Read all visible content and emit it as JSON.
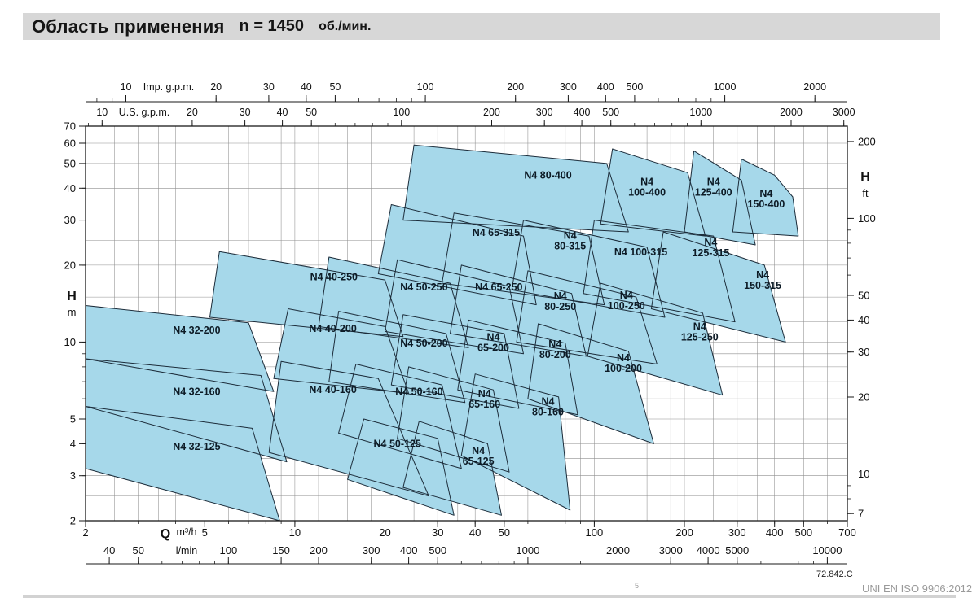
{
  "title": {
    "main": "Область применения",
    "speed": "n = 1450",
    "unit": "об./мин."
  },
  "footer": {
    "code": "72.842.C",
    "standard": "UNI EN ISO 9906:2012",
    "footnote_marker": "5"
  },
  "chart_data": {
    "type": "area",
    "title": "Область применения n = 1450 об./мин.",
    "axes": {
      "q_m3h": {
        "name_label": "Q",
        "unit": "m³/h",
        "range": [
          2,
          700
        ],
        "ticks": [
          2,
          5,
          10,
          20,
          30,
          40,
          50,
          100,
          200,
          300,
          400,
          500,
          700
        ]
      },
      "q_lmin": {
        "unit": "l/min",
        "per_m3h": 16.667,
        "ticks": [
          40,
          50,
          100,
          150,
          200,
          300,
          400,
          500,
          1000,
          2000,
          3000,
          4000,
          5000,
          10000
        ]
      },
      "q_usgpm": {
        "unit": "U.S. g.p.m.",
        "per_m3h": 4.403,
        "ticks": [
          10,
          20,
          30,
          40,
          50,
          100,
          200,
          300,
          400,
          500,
          1000,
          2000,
          3000
        ]
      },
      "q_impgpm": {
        "unit": "Imp. g.p.m.",
        "per_m3h": 3.666,
        "ticks": [
          10,
          20,
          30,
          40,
          50,
          100,
          200,
          300,
          400,
          500,
          1000,
          2000
        ]
      },
      "h_m": {
        "name_label": "H",
        "unit": "m",
        "range": [
          2,
          70
        ],
        "ticks": [
          2,
          3,
          4,
          5,
          10,
          20,
          30,
          40,
          50,
          60,
          70
        ]
      },
      "h_ft": {
        "name_label": "H",
        "unit": "ft",
        "per_m": 3.281,
        "ticks": [
          7,
          10,
          20,
          30,
          40,
          50,
          100,
          200
        ]
      }
    },
    "colors": {
      "fill": "#a6d8ea",
      "stroke": "#1c2c3a",
      "grid": "#8f8f8f",
      "axis": "#111111"
    },
    "regions": [
      {
        "name": "N4 32-125",
        "label_lines": [
          "N4 32-125"
        ],
        "label_at": [
          4.7,
          3.9
        ],
        "poly": [
          [
            2,
            5.6
          ],
          [
            7.2,
            4.6
          ],
          [
            8.9,
            2.0
          ],
          [
            2,
            3.2
          ]
        ]
      },
      {
        "name": "N4 32-160",
        "label_lines": [
          "N4 32-160"
        ],
        "label_at": [
          4.7,
          6.4
        ],
        "poly": [
          [
            2,
            8.6
          ],
          [
            7.7,
            7.4
          ],
          [
            9.4,
            3.4
          ],
          [
            2,
            5.6
          ]
        ]
      },
      {
        "name": "N4 32-200",
        "label_lines": [
          "N4 32-200"
        ],
        "label_at": [
          4.7,
          11.1
        ],
        "poly": [
          [
            2,
            13.9
          ],
          [
            7.0,
            11.9
          ],
          [
            8.5,
            6.4
          ],
          [
            2,
            8.6
          ]
        ]
      },
      {
        "name": "N4 40-160",
        "label_lines": [
          "N4 40-160"
        ],
        "label_at": [
          13.4,
          6.5
        ],
        "poly": [
          [
            9.0,
            8.4
          ],
          [
            19,
            7.2
          ],
          [
            28,
            2.5
          ],
          [
            8.2,
            3.7
          ]
        ]
      },
      {
        "name": "N4 40-200",
        "label_lines": [
          "N4 40-200"
        ],
        "label_at": [
          13.4,
          11.3
        ],
        "poly": [
          [
            9.5,
            13.5
          ],
          [
            20,
            11.5
          ],
          [
            24,
            6.3
          ],
          [
            8.5,
            7.2
          ]
        ]
      },
      {
        "name": "N4 40-250",
        "label_lines": [
          "N4 40-250"
        ],
        "label_at": [
          13.5,
          18.0
        ],
        "poly": [
          [
            5.6,
            22.6
          ],
          [
            20,
            17.5
          ],
          [
            23,
            10.5
          ],
          [
            5.2,
            12.5
          ]
        ]
      },
      {
        "name": "N4 50-125",
        "label_lines": [
          "N4 50-125"
        ],
        "label_at": [
          22,
          4.0
        ],
        "poly": [
          [
            17,
            5.0
          ],
          [
            30,
            4.2
          ],
          [
            34,
            2.1
          ],
          [
            15,
            2.9
          ]
        ]
      },
      {
        "name": "N4 50-160",
        "label_lines": [
          "N4 50-160"
        ],
        "label_at": [
          26,
          6.4
        ],
        "poly": [
          [
            16,
            8.2
          ],
          [
            31,
            6.8
          ],
          [
            36,
            3.2
          ],
          [
            14,
            4.4
          ]
        ]
      },
      {
        "name": "N4 50-200",
        "label_lines": [
          "N4 50-200"
        ],
        "label_at": [
          27,
          9.9
        ],
        "poly": [
          [
            14,
            13.2
          ],
          [
            32,
            10.8
          ],
          [
            37,
            5.8
          ],
          [
            13,
            7.0
          ]
        ]
      },
      {
        "name": "N4 50-250",
        "label_lines": [
          "N4 50-250"
        ],
        "label_at": [
          27,
          16.4
        ],
        "poly": [
          [
            13,
            21.5
          ],
          [
            33,
            17.0
          ],
          [
            38,
            9.5
          ],
          [
            12,
            11.5
          ]
        ]
      },
      {
        "name": "N4 65-125",
        "label_lines": [
          "N4",
          "65-125"
        ],
        "label_at": [
          41,
          3.6
        ],
        "poly": [
          [
            26,
            4.9
          ],
          [
            44,
            4.0
          ],
          [
            49,
            2.1
          ],
          [
            23,
            2.7
          ]
        ]
      },
      {
        "name": "N4 65-160",
        "label_lines": [
          "N4",
          "65-160"
        ],
        "label_at": [
          43,
          6.0
        ],
        "poly": [
          [
            24,
            8.0
          ],
          [
            46,
            6.5
          ],
          [
            52,
            3.1
          ],
          [
            22,
            4.2
          ]
        ]
      },
      {
        "name": "N4 65-200",
        "label_lines": [
          "N4",
          "65-200"
        ],
        "label_at": [
          46,
          10.0
        ],
        "poly": [
          [
            23,
            12.8
          ],
          [
            50,
            10.8
          ],
          [
            56,
            5.5
          ],
          [
            21,
            6.8
          ]
        ]
      },
      {
        "name": "N4 65-250",
        "label_lines": [
          "N4 65-250"
        ],
        "label_at": [
          48,
          16.4
        ],
        "poly": [
          [
            22,
            21.0
          ],
          [
            52,
            16.5
          ],
          [
            58,
            9.0
          ],
          [
            20,
            11.0
          ]
        ]
      },
      {
        "name": "N4 65-315",
        "label_lines": [
          "N4 65-315"
        ],
        "label_at": [
          47,
          26.8
        ],
        "poly": [
          [
            21,
            34.5
          ],
          [
            58,
            26
          ],
          [
            64,
            14
          ],
          [
            19,
            18.5
          ]
        ]
      },
      {
        "name": "N4 80-160",
        "label_lines": [
          "N4",
          "80-160"
        ],
        "label_at": [
          70,
          5.6
        ],
        "poly": [
          [
            40,
            7.5
          ],
          [
            76,
            6.1
          ],
          [
            83,
            2.2
          ],
          [
            36,
            3.6
          ]
        ]
      },
      {
        "name": "N4 80-200",
        "label_lines": [
          "N4",
          "80-200"
        ],
        "label_at": [
          74,
          9.4
        ],
        "poly": [
          [
            38,
            12.2
          ],
          [
            80,
            9.9
          ],
          [
            88,
            5.2
          ],
          [
            35,
            6.5
          ]
        ]
      },
      {
        "name": "N4 80-250",
        "label_lines": [
          "N4",
          "80-250"
        ],
        "label_at": [
          77,
          14.5
        ],
        "poly": [
          [
            36,
            20
          ],
          [
            84,
            15.5
          ],
          [
            94,
            8.8
          ],
          [
            33,
            10.8
          ]
        ]
      },
      {
        "name": "N4 80-315",
        "label_lines": [
          "N4",
          "80-315"
        ],
        "label_at": [
          83,
          25
        ],
        "poly": [
          [
            34,
            32
          ],
          [
            96,
            26
          ],
          [
            108,
            14
          ],
          [
            31,
            17
          ]
        ]
      },
      {
        "name": "N4 80-400",
        "label_lines": [
          "N4 80-400"
        ],
        "label_at": [
          70,
          45
        ],
        "poly": [
          [
            25,
            59
          ],
          [
            110,
            50
          ],
          [
            130,
            27
          ],
          [
            23,
            30
          ]
        ]
      },
      {
        "name": "N4 100-200",
        "label_lines": [
          "N4",
          "100-200"
        ],
        "label_at": [
          125,
          8.3
        ],
        "poly": [
          [
            65,
            11.8
          ],
          [
            130,
            9.2
          ],
          [
            158,
            4.0
          ],
          [
            60,
            6.0
          ]
        ]
      },
      {
        "name": "N4 100-250",
        "label_lines": [
          "N4",
          "100-250"
        ],
        "label_at": [
          128,
          14.6
        ],
        "poly": [
          [
            60,
            19
          ],
          [
            138,
            15
          ],
          [
            162,
            8.2
          ],
          [
            55,
            10
          ]
        ]
      },
      {
        "name": "N4 100-315",
        "label_lines": [
          "N4 100-315"
        ],
        "label_at": [
          143,
          22.5
        ],
        "poly": [
          [
            58,
            30
          ],
          [
            150,
            23.5
          ],
          [
            172,
            12.5
          ],
          [
            53,
            16
          ]
        ]
      },
      {
        "name": "N4 100-400",
        "label_lines": [
          "N4",
          "100-400"
        ],
        "label_at": [
          150,
          40.5
        ],
        "poly": [
          [
            115,
            57
          ],
          [
            205,
            46
          ],
          [
            235,
            26
          ],
          [
            105,
            29
          ]
        ]
      },
      {
        "name": "N4 125-250",
        "label_lines": [
          "N4",
          "125-250"
        ],
        "label_at": [
          225,
          11
        ],
        "poly": [
          [
            105,
            17
          ],
          [
            230,
            13
          ],
          [
            268,
            6.2
          ],
          [
            95,
            8.8
          ]
        ]
      },
      {
        "name": "N4 125-315",
        "label_lines": [
          "N4",
          "125-315"
        ],
        "label_at": [
          245,
          23.5
        ],
        "poly": [
          [
            100,
            30
          ],
          [
            250,
            26
          ],
          [
            295,
            12
          ],
          [
            92,
            15.5
          ]
        ]
      },
      {
        "name": "N4 125-400",
        "label_lines": [
          "N4",
          "125-400"
        ],
        "label_at": [
          250,
          40.5
        ],
        "poly": [
          [
            215,
            56
          ],
          [
            310,
            43
          ],
          [
            345,
            24
          ],
          [
            200,
            27
          ]
        ]
      },
      {
        "name": "N4 150-315",
        "label_lines": [
          "N4",
          "150-315"
        ],
        "label_at": [
          365,
          17.5
        ],
        "poly": [
          [
            170,
            27
          ],
          [
            370,
            20
          ],
          [
            435,
            10
          ],
          [
            155,
            13.5
          ]
        ]
      },
      {
        "name": "N4 150-400",
        "label_lines": [
          "N4",
          "150-400"
        ],
        "label_at": [
          375,
          36.5
        ],
        "poly": [
          [
            310,
            52
          ],
          [
            400,
            45
          ],
          [
            460,
            37
          ],
          [
            480,
            26
          ],
          [
            290,
            27
          ]
        ]
      }
    ]
  }
}
